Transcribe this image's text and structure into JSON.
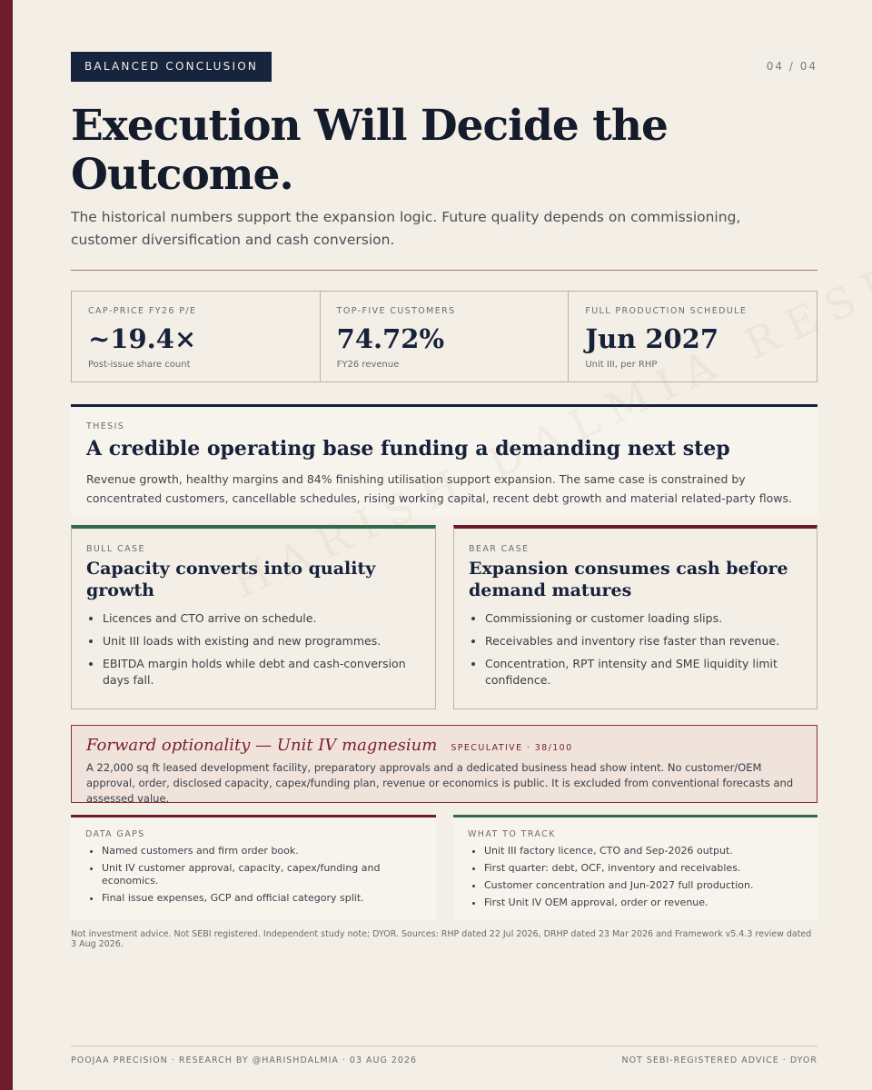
{
  "header": {
    "tag": "BALANCED CONCLUSION",
    "page_number": "04 / 04",
    "title": "Execution Will Decide the Outcome.",
    "subtitle": "The historical numbers support the expansion logic. Future quality depends on commissioning, customer diversification and cash conversion."
  },
  "stats": [
    {
      "label": "CAP-PRICE FY26 P/E",
      "value": "~19.4×",
      "note": "Post-issue share count"
    },
    {
      "label": "TOP-FIVE CUSTOMERS",
      "value": "74.72%",
      "note": "FY26 revenue"
    },
    {
      "label": "FULL PRODUCTION SCHEDULE",
      "value": "Jun 2027",
      "note": "Unit III, per RHP"
    }
  ],
  "thesis": {
    "kicker": "THESIS",
    "heading": "A credible operating base funding a demanding next step",
    "body": "Revenue growth, healthy margins and 84% finishing utilisation support expansion. The same case is constrained by concentrated customers, cancellable schedules, rising working capital, recent debt growth and material related-party flows."
  },
  "bull": {
    "kicker": "BULL CASE",
    "heading": "Capacity converts into quality growth",
    "items": [
      "Licences and CTO arrive on schedule.",
      "Unit III loads with existing and new programmes.",
      "EBITDA margin holds while debt and cash-conversion days fall."
    ]
  },
  "bear": {
    "kicker": "BEAR CASE",
    "heading": "Expansion consumes cash before demand matures",
    "items": [
      "Commissioning or customer loading slips.",
      "Receivables and inventory rise faster than revenue.",
      "Concentration, RPT intensity and SME liquidity limit confidence."
    ]
  },
  "forward": {
    "title": "Forward optionality — Unit IV magnesium",
    "badge": "SPECULATIVE · 38/100",
    "body": "A 22,000 sq ft leased development facility, preparatory approvals and a dedicated business head show intent. No customer/OEM approval, order, disclosed capacity, capex/funding plan, revenue or economics is public. It is excluded from conventional forecasts and assessed value."
  },
  "data_gaps": {
    "kicker": "DATA GAPS",
    "items": [
      "Named customers and firm order book.",
      "Unit IV customer approval, capacity, capex/funding and economics.",
      "Final issue expenses, GCP and official category split."
    ]
  },
  "track": {
    "kicker": "WHAT TO TRACK",
    "items": [
      "Unit III factory licence, CTO and Sep-2026 output.",
      "First quarter: debt, OCF, inventory and receivables.",
      "Customer concentration and Jun-2027 full production.",
      "First Unit IV OEM approval, order or revenue."
    ]
  },
  "disclaimer": "Not investment advice. Not SEBI registered. Independent study note; DYOR. Sources: RHP dated 22 Jul 2026, DRHP dated 23 Mar 2026 and Framework v5.4.3 review dated 3 Aug 2026.",
  "watermark": "HARISH DALMIA RESEARCH",
  "footer": {
    "left": "POOJAA PRECISION · RESEARCH BY @HARISHDALMIA · 03 AUG 2026",
    "right": "NOT SEBI-REGISTERED ADVICE · DYOR"
  },
  "colors": {
    "background": "#f3efe6",
    "navy": "#16213a",
    "maroon": "#6e1c2a",
    "green": "#2f6b4b",
    "forward_fill": "#efe3dc"
  }
}
